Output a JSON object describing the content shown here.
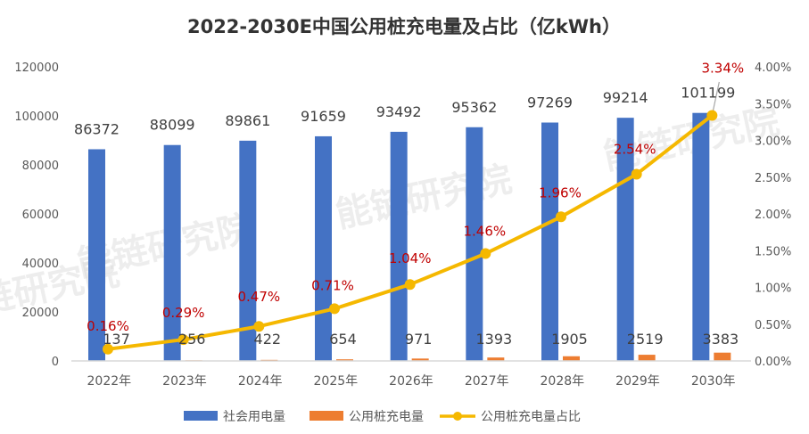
{
  "chart_data": {
    "type": "bar+line",
    "title": "2022-2030E中国公用桩充电量及占比（亿kWh）",
    "categories": [
      "2022年",
      "2023年",
      "2024年",
      "2025年",
      "2026年",
      "2027年",
      "2028年",
      "2029年",
      "2030年"
    ],
    "series": [
      {
        "name": "社会用电量",
        "type": "bar",
        "axis": "left",
        "color": "#4472c4",
        "values": [
          86372,
          88099,
          89861,
          91659,
          93492,
          95362,
          97269,
          99214,
          101199
        ],
        "labels": [
          "86372",
          "88099",
          "89861",
          "91659",
          "93492",
          "95362",
          "97269",
          "99214",
          "101199"
        ]
      },
      {
        "name": "公用桩充电量",
        "type": "bar",
        "axis": "left",
        "color": "#ed7d31",
        "values": [
          137,
          256,
          422,
          654,
          971,
          1393,
          1905,
          2519,
          3383
        ],
        "labels": [
          "137",
          "256",
          "422",
          "654",
          "971",
          "1393",
          "1905",
          "2519",
          "3383"
        ]
      },
      {
        "name": "公用桩充电量占比",
        "type": "line",
        "axis": "right",
        "color": "#f5b800",
        "values": [
          0.16,
          0.29,
          0.47,
          0.71,
          1.04,
          1.46,
          1.96,
          2.54,
          3.34
        ],
        "labels": [
          "0.16%",
          "0.29%",
          "0.47%",
          "0.71%",
          "1.04%",
          "1.46%",
          "1.96%",
          "2.54%",
          "3.34%"
        ],
        "label_color": "#c00000"
      }
    ],
    "y_left": {
      "range": [
        0,
        120000
      ],
      "ticks": [
        "0",
        "20000",
        "40000",
        "60000",
        "80000",
        "100000",
        "120000"
      ]
    },
    "y_right": {
      "range": [
        0,
        4.0
      ],
      "ticks": [
        "0.00%",
        "0.50%",
        "1.00%",
        "1.50%",
        "2.00%",
        "2.50%",
        "3.00%",
        "3.50%",
        "4.00%"
      ]
    },
    "grid": false,
    "legend": "bottom",
    "xlabel": "",
    "ylabel": ""
  },
  "watermark": "能链研究院"
}
